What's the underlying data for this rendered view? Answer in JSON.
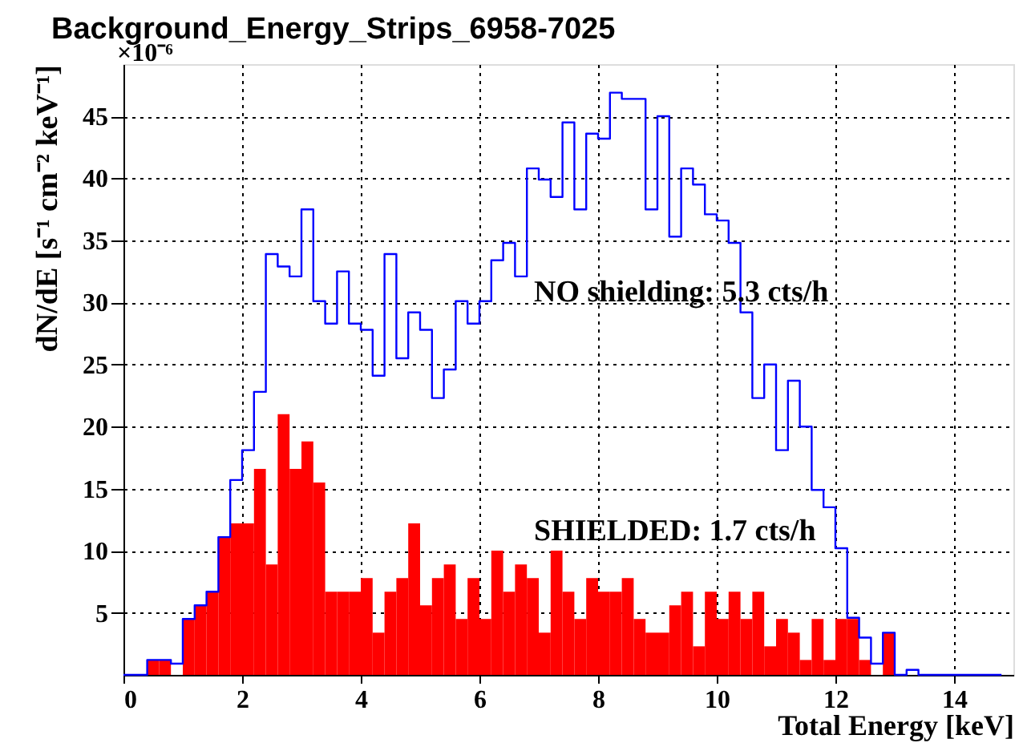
{
  "chart_data": {
    "type": "histogram",
    "title": "Background_Energy_Strips_6958-7025",
    "xlabel": "Total Energy [keV]",
    "ylabel": "dN/dE  [s⁻¹ cm⁻² keV⁻¹]",
    "annotations": [
      "×10⁻⁶"
    ],
    "bins": [
      0,
      0.2,
      0.4,
      0.6,
      0.8,
      1,
      1.2,
      1.4,
      1.6,
      1.8,
      2,
      2.2,
      2.4,
      2.6,
      2.8,
      3,
      3.2,
      3.4,
      3.6,
      3.8,
      4,
      4.2,
      4.4,
      4.6,
      4.8,
      5,
      5.2,
      5.4,
      5.6,
      5.8,
      6,
      6.2,
      6.4,
      6.6,
      6.8,
      7,
      7.2,
      7.4,
      7.6,
      7.8,
      8,
      8.2,
      8.4,
      8.6,
      8.8,
      9,
      9.2,
      9.4,
      9.6,
      9.8,
      10,
      10.2,
      10.4,
      10.6,
      10.8,
      11,
      11.2,
      11.4,
      11.6,
      11.8,
      12,
      12.2,
      12.4,
      12.6,
      12.8,
      13,
      13.2,
      13.4,
      13.6,
      13.8,
      14,
      14.2,
      14.4,
      14.6,
      14.8,
      15
    ],
    "series": [
      {
        "name": "NO shielding: 5.3 cts/h",
        "type": "step",
        "color": "#0000ff",
        "x": [
          0,
          0.2,
          0.4,
          0.6,
          0.8,
          1,
          1.2,
          1.4,
          1.6,
          1.8,
          2,
          2.2,
          2.4,
          2.6,
          2.8,
          3,
          3.2,
          3.4,
          3.6,
          3.8,
          4,
          4.2,
          4.4,
          4.6,
          4.8,
          5,
          5.2,
          5.4,
          5.6,
          5.8,
          6,
          6.2,
          6.4,
          6.6,
          6.8,
          7,
          7.2,
          7.4,
          7.6,
          7.8,
          8,
          8.2,
          8.4,
          8.6,
          8.8,
          9,
          9.2,
          9.4,
          9.6,
          9.8,
          10,
          10.2,
          10.4,
          10.6,
          10.8,
          11,
          11.2,
          11.4,
          11.6,
          11.8,
          12,
          12.2,
          12.4,
          12.6,
          12.8,
          13,
          13.2,
          13.4,
          13.6,
          13.8,
          14,
          14.2,
          14.4,
          14.6,
          14.8
        ],
        "values": [
          0,
          0,
          1.2,
          1.2,
          0.9,
          4.5,
          5.6,
          6.7,
          11.1,
          15.7,
          18.1,
          22.8,
          33.9,
          32.9,
          32.1,
          37.5,
          30.1,
          28.3,
          32.5,
          28.3,
          27.8,
          24.1,
          33.9,
          25.5,
          29.2,
          27.8,
          22.3,
          24.6,
          30.1,
          28.3,
          30.1,
          33.4,
          34.8,
          32.1,
          40.8,
          39.9,
          38.5,
          44.5,
          37.5,
          43.6,
          43.2,
          46.9,
          46.4,
          46.4,
          37.5,
          45.0,
          35.3,
          40.8,
          39.5,
          37.1,
          36.6,
          34.8,
          29.2,
          22.3,
          25.0,
          18.1,
          23.7,
          20.0,
          14.9,
          13.5,
          10.2,
          4.6,
          3.0,
          0.9,
          3.4,
          0,
          0.4,
          0,
          0,
          0,
          0,
          0,
          0,
          0,
          0
        ]
      },
      {
        "name": "SHIELDED: 1.7 cts/h",
        "type": "histogram",
        "color": "#ff0000",
        "values": [
          0,
          0,
          1.2,
          1.2,
          0,
          4.5,
          5.6,
          6.7,
          11.1,
          12.2,
          12.2,
          16.6,
          8.9,
          21.0,
          16.6,
          18.8,
          15.5,
          6.7,
          6.7,
          6.7,
          7.8,
          3.4,
          6.7,
          7.8,
          12.2,
          5.6,
          7.8,
          8.9,
          4.5,
          7.8,
          4.5,
          10.0,
          6.7,
          8.9,
          7.8,
          3.4,
          10.0,
          6.7,
          4.5,
          7.8,
          6.7,
          6.7,
          7.8,
          4.5,
          3.4,
          3.4,
          5.6,
          6.7,
          2.3,
          6.7,
          4.5,
          6.7,
          4.5,
          6.7,
          2.3,
          4.5,
          3.4,
          1.2,
          4.5,
          1.2,
          4.5,
          4.5,
          1.2,
          0,
          3.4,
          0,
          0,
          0,
          0,
          0,
          0,
          0,
          0,
          0,
          0
        ]
      }
    ],
    "xlim": [
      0,
      15
    ],
    "ylim": [
      0,
      49.2
    ],
    "xticks": [
      0,
      2,
      4,
      6,
      8,
      10,
      12,
      14
    ],
    "yticks": [
      5,
      10,
      15,
      20,
      25,
      30,
      35,
      40,
      45
    ],
    "grid": true
  }
}
